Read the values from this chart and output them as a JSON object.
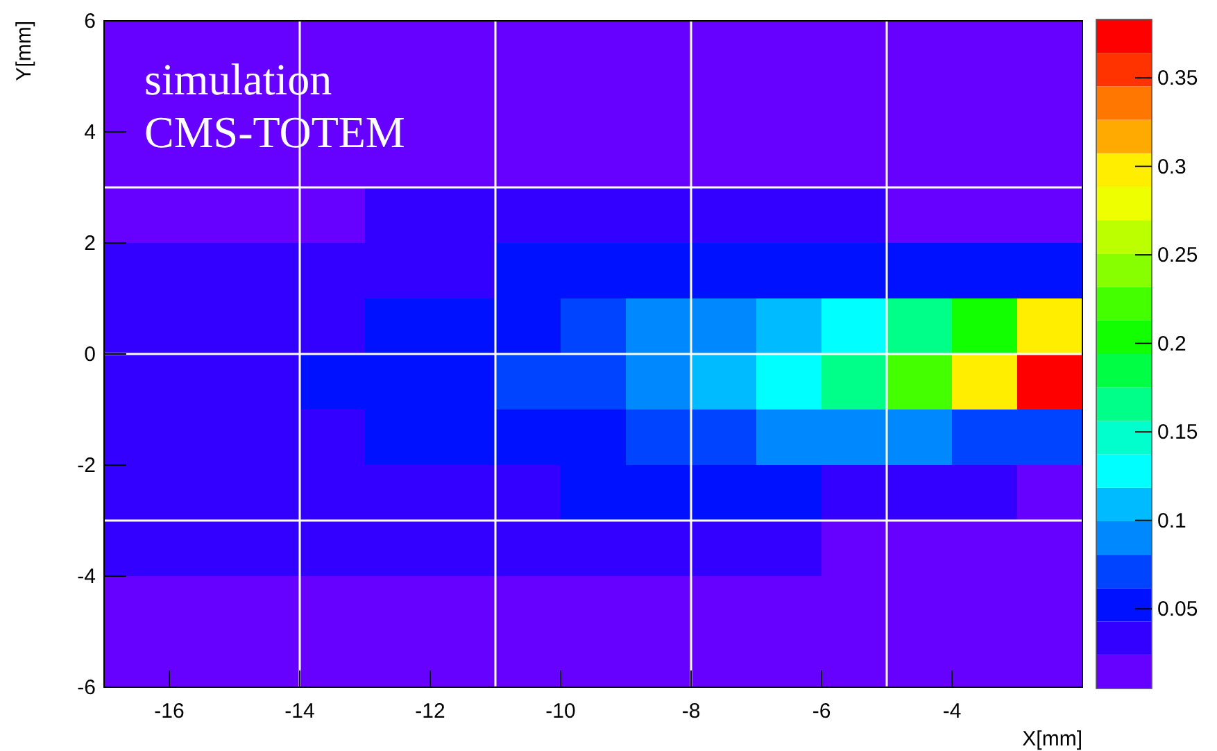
{
  "chart_data": {
    "type": "heatmap",
    "xlabel": "X[mm]",
    "ylabel": "Y[mm]",
    "annotations": [
      "simulation",
      "CMS-TOTEM"
    ],
    "x": [
      -16.5,
      -15.5,
      -14.5,
      -13.5,
      -12.5,
      -11.5,
      -10.5,
      -9.5,
      -8.5,
      -7.5,
      -6.5,
      -5.5,
      -4.5,
      -3.5,
      -2.5
    ],
    "y": [
      5.5,
      4.5,
      3.5,
      2.5,
      1.5,
      0.5,
      -0.5,
      -1.5,
      -2.5,
      -3.5,
      -4.5,
      -5.5
    ],
    "xlim": [
      -17,
      -2
    ],
    "xticks": [
      -16,
      -14,
      -12,
      -10,
      -8,
      -6,
      -4
    ],
    "ylim": [
      -6,
      6
    ],
    "yticks": [
      -6,
      -4,
      -2,
      0,
      2,
      4,
      6
    ],
    "clim": [
      0.005,
      0.383
    ],
    "cticks": [
      0.05,
      0.1,
      0.15,
      0.2,
      0.25,
      0.3,
      0.35
    ],
    "cells": [
      [
        0.014,
        0.014,
        0.014,
        0.014,
        0.014,
        0.014,
        0.014,
        0.014,
        0.014,
        0.014,
        0.014,
        0.014,
        0.014,
        0.014,
        0.014
      ],
      [
        0.014,
        0.014,
        0.014,
        0.014,
        0.014,
        0.014,
        0.014,
        0.014,
        0.014,
        0.014,
        0.014,
        0.014,
        0.014,
        0.014,
        0.014
      ],
      [
        0.014,
        0.014,
        0.014,
        0.014,
        0.014,
        0.014,
        0.014,
        0.014,
        0.014,
        0.014,
        0.014,
        0.014,
        0.014,
        0.014,
        0.014
      ],
      [
        0.014,
        0.014,
        0.014,
        0.014,
        0.033,
        0.033,
        0.033,
        0.033,
        0.033,
        0.033,
        0.033,
        0.033,
        0.014,
        0.014,
        0.014
      ],
      [
        0.033,
        0.033,
        0.033,
        0.033,
        0.033,
        0.033,
        0.052,
        0.052,
        0.052,
        0.052,
        0.052,
        0.052,
        0.052,
        0.052,
        0.052
      ],
      [
        0.033,
        0.033,
        0.033,
        0.033,
        0.052,
        0.052,
        0.052,
        0.071,
        0.09,
        0.09,
        0.109,
        0.128,
        0.166,
        0.203,
        0.298
      ],
      [
        0.033,
        0.033,
        0.033,
        0.052,
        0.052,
        0.052,
        0.071,
        0.071,
        0.09,
        0.109,
        0.128,
        0.166,
        0.222,
        0.298,
        0.374
      ],
      [
        0.033,
        0.033,
        0.033,
        0.033,
        0.052,
        0.052,
        0.052,
        0.052,
        0.071,
        0.071,
        0.09,
        0.09,
        0.09,
        0.071,
        0.071
      ],
      [
        0.033,
        0.033,
        0.033,
        0.033,
        0.033,
        0.033,
        0.033,
        0.052,
        0.052,
        0.052,
        0.052,
        0.033,
        0.033,
        0.033,
        0.014
      ],
      [
        0.033,
        0.033,
        0.033,
        0.033,
        0.033,
        0.033,
        0.033,
        0.033,
        0.033,
        0.033,
        0.033,
        0.014,
        0.014,
        0.014,
        0.014
      ],
      [
        0.014,
        0.014,
        0.014,
        0.014,
        0.014,
        0.014,
        0.014,
        0.014,
        0.014,
        0.014,
        0.014,
        0.014,
        0.014,
        0.014,
        0.014
      ],
      [
        0.014,
        0.014,
        0.014,
        0.014,
        0.014,
        0.014,
        0.014,
        0.014,
        0.014,
        0.014,
        0.014,
        0.014,
        0.014,
        0.014,
        0.014
      ]
    ],
    "ref_lines": [
      {
        "axis": "x",
        "value": -14,
        "color": "#ffffff"
      },
      {
        "axis": "x",
        "value": -11,
        "color": "#ffffff"
      },
      {
        "axis": "x",
        "value": -8,
        "color": "#ffffff"
      },
      {
        "axis": "x",
        "value": -5,
        "color": "#ffffff"
      },
      {
        "axis": "y",
        "value": 3,
        "color": "#ffffff"
      },
      {
        "axis": "y",
        "value": 0,
        "color": "#ffffff"
      },
      {
        "axis": "y",
        "value": -3,
        "color": "#ffffff"
      }
    ]
  }
}
